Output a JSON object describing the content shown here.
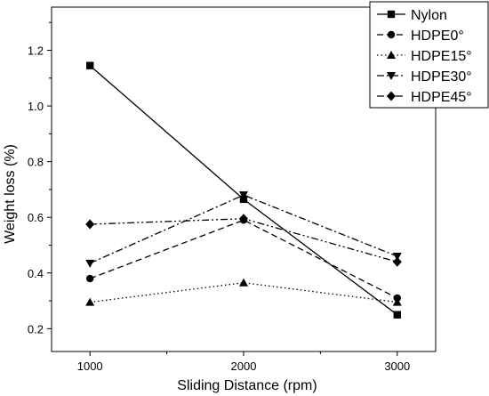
{
  "chart_data": {
    "type": "line",
    "title": "",
    "xlabel": "Sliding Distance (rpm)",
    "ylabel": "Weight loss (%)",
    "x": [
      1000,
      2000,
      3000
    ],
    "x_ticks": [
      "1000",
      "2000",
      "3000"
    ],
    "y_ticks": [
      "0.2",
      "0.4",
      "0.6",
      "0.8",
      "1.0",
      "1.2"
    ],
    "xlim": [
      750,
      3250
    ],
    "ylim": [
      0.118,
      1.355
    ],
    "grid": false,
    "legend_position": "top-right",
    "series": [
      {
        "name": "Nylon",
        "values": [
          1.145,
          0.665,
          0.25
        ],
        "marker": "square",
        "dash": "solid",
        "color": "#000000"
      },
      {
        "name": "HDPE0°",
        "values": [
          0.38,
          0.59,
          0.31
        ],
        "marker": "circle",
        "dash": "dashed",
        "color": "#000000"
      },
      {
        "name": "HDPE15°",
        "values": [
          0.295,
          0.365,
          0.295
        ],
        "marker": "triangle-up",
        "dash": "dotted",
        "color": "#000000"
      },
      {
        "name": "HDPE30°",
        "values": [
          0.435,
          0.68,
          0.46
        ],
        "marker": "triangle-down",
        "dash": "dash-dot",
        "color": "#000000"
      },
      {
        "name": "HDPE45°",
        "values": [
          0.575,
          0.595,
          0.44
        ],
        "marker": "diamond",
        "dash": "dash-dot-dot",
        "color": "#000000"
      }
    ]
  }
}
